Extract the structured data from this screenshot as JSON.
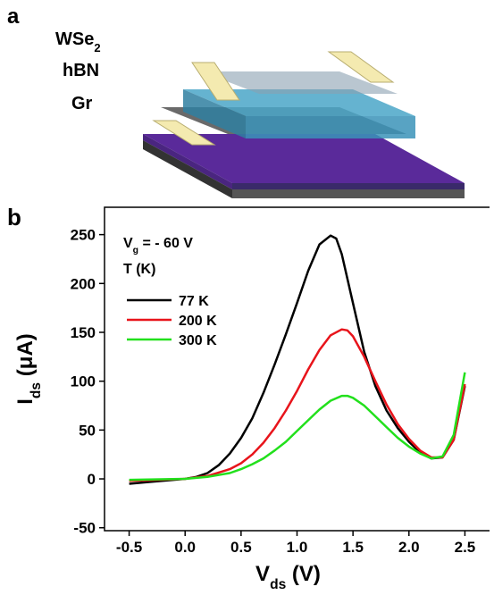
{
  "panel_a": {
    "label": "a",
    "layers": [
      [
        {
          "text": "WSe"
        },
        {
          "text": "2",
          "sub": true
        }
      ],
      [
        {
          "text": "hBN"
        }
      ],
      [
        {
          "text": "Gr"
        }
      ]
    ]
  },
  "chart_data": {
    "type": "line",
    "label": "b",
    "x_label": [
      {
        "text": "V"
      },
      {
        "text": "ds",
        "sub": true
      },
      {
        "text": " (V)"
      }
    ],
    "y_label": [
      {
        "text": "I"
      },
      {
        "text": "ds",
        "sub": true
      },
      {
        "text": " (μA)"
      }
    ],
    "legend_title": [
      [
        {
          "text": "V"
        },
        {
          "text": "g",
          "sub": true
        },
        {
          "text": " = - 60 V"
        }
      ],
      [
        {
          "text": "T (K)"
        }
      ]
    ],
    "xlim": [
      -0.72,
      2.72
    ],
    "ylim": [
      -53,
      278
    ],
    "xticks": [
      -0.5,
      {
        "value": 0,
        "label": "0.0"
      },
      0.5,
      {
        "value": 1,
        "label": "1.0"
      },
      1.5,
      {
        "value": 2,
        "label": "2.0"
      },
      2.5
    ],
    "yticks": [
      -50,
      0,
      50,
      100,
      150,
      200,
      250
    ],
    "series": [
      {
        "name": "77 K",
        "color": "#000000",
        "x": [
          -0.5,
          -0.3,
          0,
          0.1,
          0.2,
          0.3,
          0.4,
          0.5,
          0.6,
          0.7,
          0.8,
          0.9,
          1.0,
          1.1,
          1.2,
          1.3,
          1.35,
          1.4,
          1.5,
          1.6,
          1.7,
          1.8,
          1.9,
          2.0,
          2.1,
          2.2,
          2.3,
          2.4,
          2.5
        ],
        "values": [
          -5,
          -3,
          0,
          2,
          6,
          14,
          26,
          42,
          62,
          88,
          117,
          148,
          180,
          213,
          240,
          249,
          246,
          230,
          180,
          130,
          95,
          70,
          52,
          38,
          27,
          21,
          22,
          40,
          95
        ]
      },
      {
        "name": "200 K",
        "color": "#e8141b",
        "x": [
          -0.5,
          0,
          0.2,
          0.4,
          0.5,
          0.6,
          0.7,
          0.8,
          0.9,
          1.0,
          1.1,
          1.2,
          1.3,
          1.4,
          1.45,
          1.5,
          1.6,
          1.7,
          1.8,
          1.9,
          2.0,
          2.1,
          2.2,
          2.3,
          2.4,
          2.5
        ],
        "values": [
          -2,
          0,
          3,
          10,
          16,
          25,
          37,
          52,
          70,
          90,
          112,
          132,
          147,
          153,
          152,
          146,
          125,
          100,
          76,
          56,
          41,
          29,
          22,
          22,
          40,
          97
        ]
      },
      {
        "name": "300 K",
        "color": "#22e01c",
        "x": [
          -0.5,
          0,
          0.2,
          0.4,
          0.5,
          0.6,
          0.7,
          0.8,
          0.9,
          1.0,
          1.1,
          1.2,
          1.3,
          1.4,
          1.45,
          1.5,
          1.6,
          1.7,
          1.8,
          1.9,
          2.0,
          2.1,
          2.2,
          2.3,
          2.4,
          2.5
        ],
        "values": [
          -1,
          0,
          2,
          6,
          10,
          15,
          21,
          29,
          38,
          49,
          60,
          71,
          80,
          85,
          85,
          83,
          75,
          64,
          53,
          42,
          33,
          26,
          21,
          23,
          45,
          109
        ]
      }
    ]
  }
}
